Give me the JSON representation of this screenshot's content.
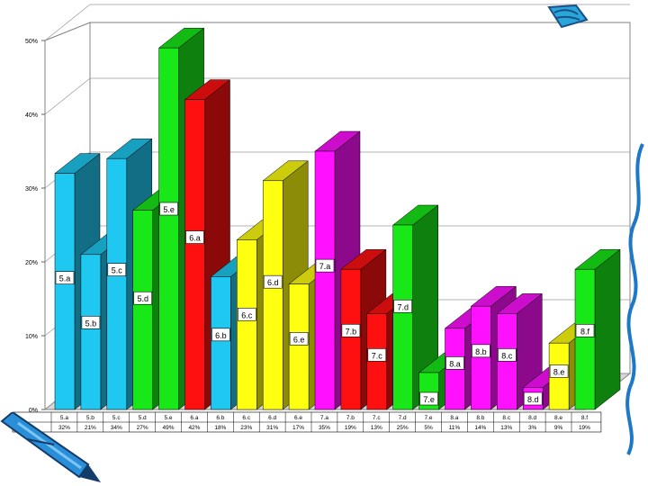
{
  "chart_data": {
    "type": "bar",
    "ylim": [
      0,
      50
    ],
    "yticks": [
      "0%",
      "10%",
      "20%",
      "30%",
      "40%",
      "50%"
    ],
    "ytick_values": [
      0,
      10,
      20,
      30,
      40,
      50
    ],
    "grid": true,
    "series": [
      {
        "name": "Series1",
        "values": [
          32,
          21,
          34,
          27,
          49,
          42,
          18,
          23,
          31,
          17,
          35,
          19,
          13,
          25,
          5,
          11,
          14,
          13,
          3,
          9,
          19
        ],
        "value_labels": [
          "32%",
          "21%",
          "34%",
          "27%",
          "49%",
          "42%",
          "18%",
          "23%",
          "31%",
          "17%",
          "35%",
          "19%",
          "13%",
          "25%",
          "5%",
          "11%",
          "14%",
          "13%",
          "3%",
          "9%",
          "19%"
        ]
      }
    ],
    "categories": [
      "5.a",
      "5.b",
      "5.c",
      "5.d",
      "5.e",
      "6.a",
      "6.b",
      "6.c",
      "6.d",
      "6.e",
      "7.a",
      "7.b",
      "7.c",
      "7.d",
      "7.e",
      "8.a",
      "8.b",
      "8.c",
      "8.d",
      "8.e",
      "8.f"
    ],
    "bar_colors": [
      "#1ec8f0",
      "#1ec8f0",
      "#1ec8f0",
      "#18e818",
      "#18e818",
      "#ff1010",
      "#1ec8f0",
      "#ffff10",
      "#ffff10",
      "#ffff10",
      "#ff10ff",
      "#ff1010",
      "#ff1010",
      "#18e818",
      "#18e818",
      "#ff10ff",
      "#ff10ff",
      "#ff10ff",
      "#ff10ff",
      "#ffff10",
      "#18e818"
    ]
  },
  "decorations": {
    "top_right": "crayon-doodle",
    "right_side": "blue-swirl",
    "bottom_left": "blue-crayon"
  }
}
